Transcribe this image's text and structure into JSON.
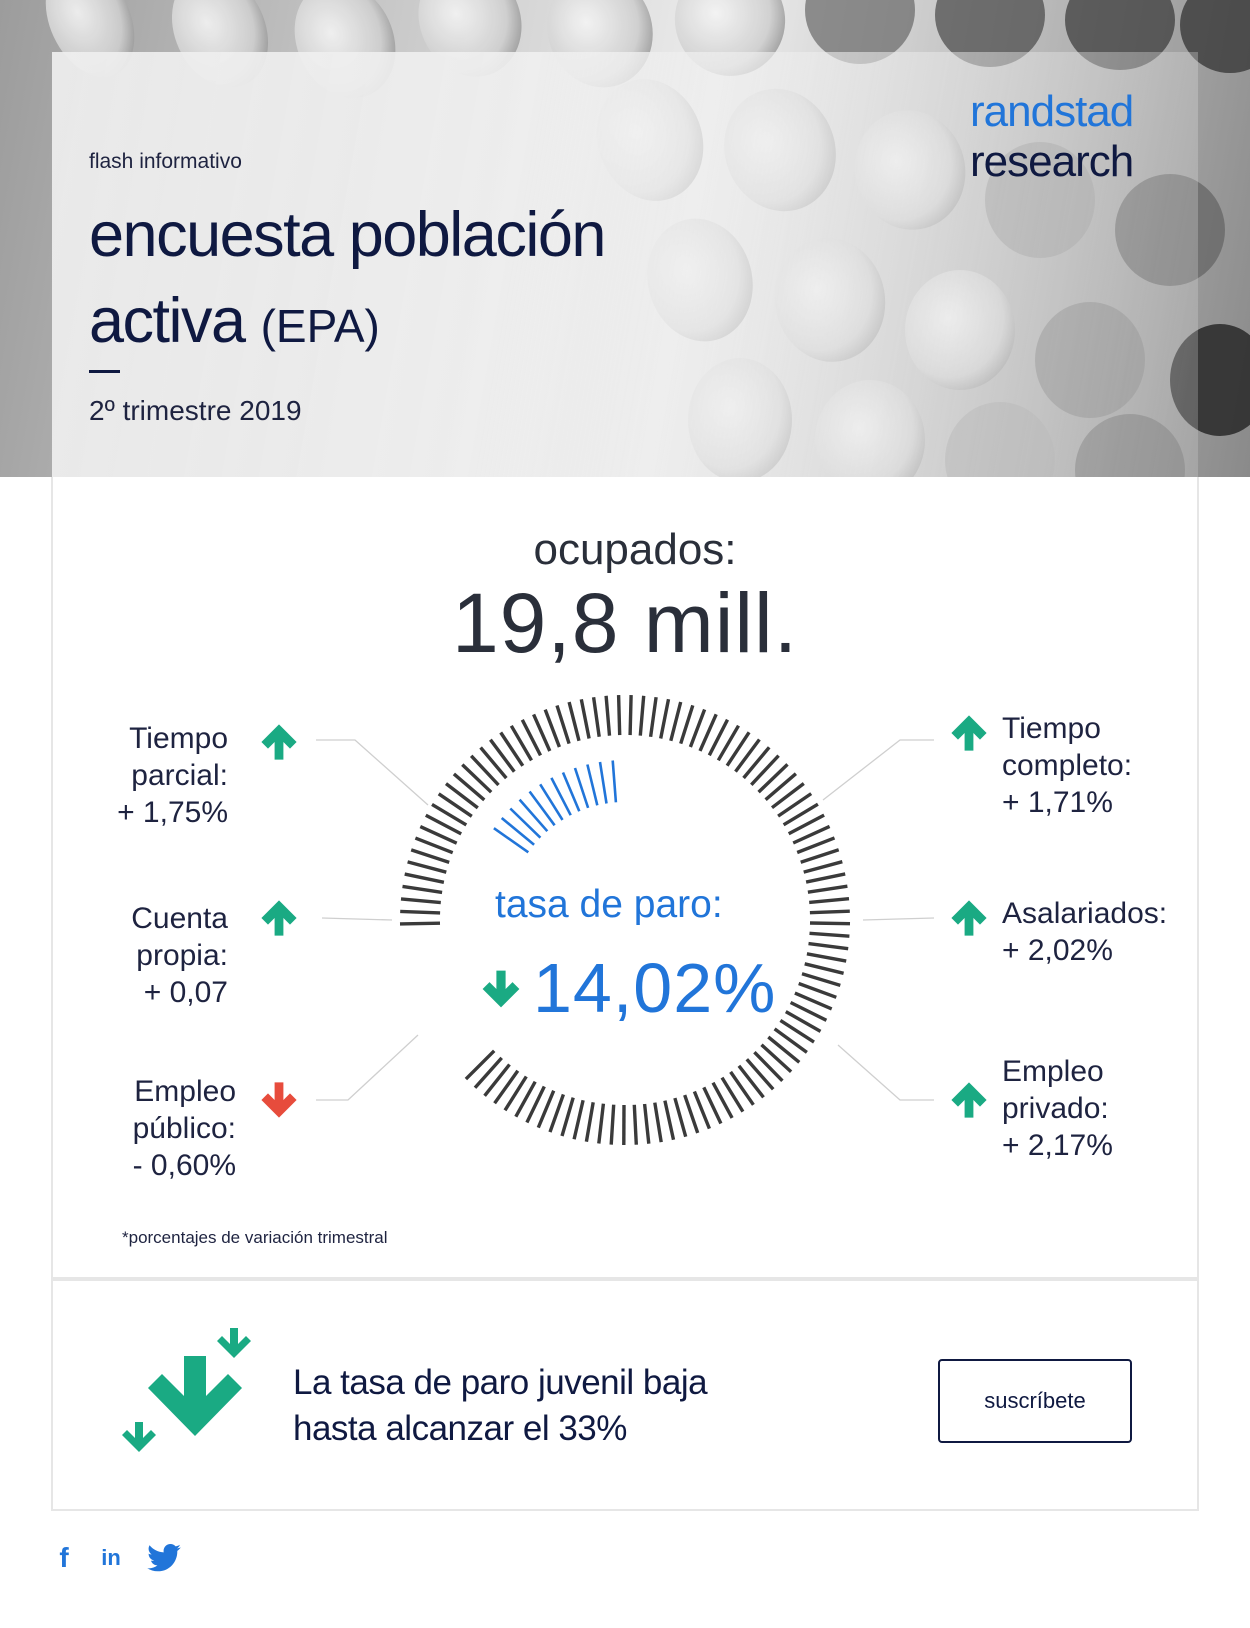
{
  "header": {
    "kicker": "flash informativo",
    "title_line1": "encuesta población",
    "title_line2_main": "activa",
    "title_line2_paren": "(EPA)",
    "subtitle": "2º trimestre 2019",
    "brand_line1": "randstad",
    "brand_line2": "research"
  },
  "highlight": {
    "ocupados_label": "ocupados:",
    "ocupados_value": "19,8 mill.",
    "tasa_label": "tasa de paro:",
    "tasa_value": "14,02%",
    "tasa_trend": "down"
  },
  "stats_left": [
    {
      "line1": "Tiempo",
      "line2": "parcial:",
      "value": "+ 1,75%",
      "trend": "up"
    },
    {
      "line1": "Cuenta",
      "line2": "propia:",
      "value": "+ 0,07",
      "trend": "up"
    },
    {
      "line1": "Empleo",
      "line2": "público:",
      "value": "- 0,60%",
      "trend": "down"
    }
  ],
  "stats_right": [
    {
      "line1": "Tiempo",
      "line2": "completo:",
      "value": "+ 1,71%",
      "trend": "up"
    },
    {
      "line1": "Asalariados:",
      "line2": "",
      "value": "+ 2,02%",
      "trend": "up"
    },
    {
      "line1": "Empleo",
      "line2": "privado:",
      "value": "+ 2,17%",
      "trend": "up"
    }
  ],
  "footnote": "*porcentajes de variación trimestral",
  "news": {
    "line1": "La tasa de paro juvenil baja",
    "line2": "hasta alcanzar el 33%",
    "cta_label": "suscríbete"
  },
  "social": [
    {
      "label": "f",
      "icon": "facebook-icon"
    },
    {
      "label": "in",
      "icon": "linkedin-icon"
    },
    {
      "label": "",
      "icon": "twitter-icon"
    }
  ],
  "colors": {
    "navy": "#0f1941",
    "brand_blue": "#2175d9",
    "up_green": "#1aaa83",
    "down_red": "#e74c3c",
    "ring_gray": "#3a3a3a"
  }
}
